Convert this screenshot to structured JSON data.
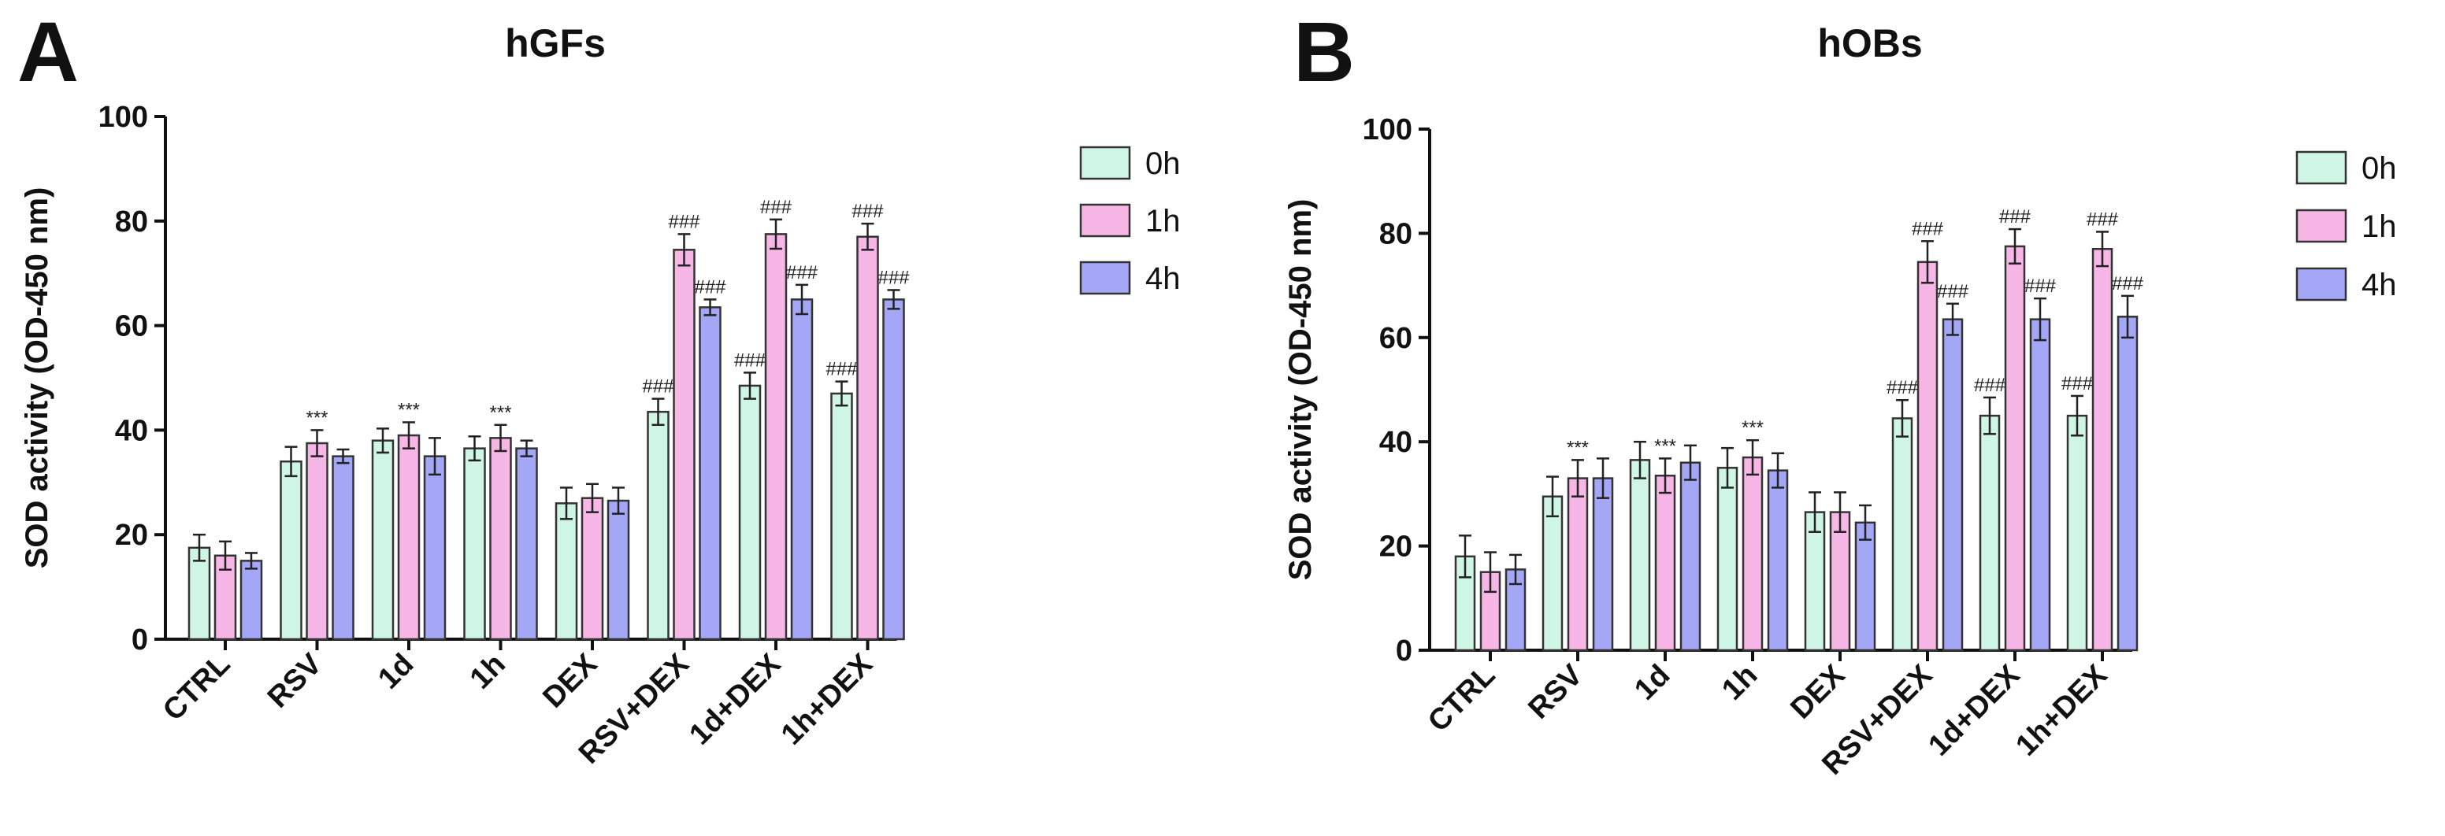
{
  "chart_data": [
    {
      "type": "bar",
      "panel": "A",
      "title": "hGFs",
      "ylabel": "SOD activity (OD-450 nm)",
      "xlabel": "",
      "ylim": [
        0,
        100
      ],
      "yticks": [
        0,
        20,
        40,
        60,
        80,
        100
      ],
      "categories": [
        "CTRL",
        "RSV",
        "1d",
        "1h",
        "DEX",
        "RSV+DEX",
        "1d+DEX",
        "1h+DEX"
      ],
      "series": [
        {
          "name": "0h",
          "color": "#cff5e4",
          "values": [
            17.5,
            34,
            38,
            36.5,
            26,
            43.5,
            48.5,
            47
          ],
          "errors": [
            2.5,
            2.8,
            2.3,
            2.3,
            3,
            2.5,
            2.5,
            2.3
          ],
          "annotations": [
            "",
            "",
            "",
            "",
            "",
            "###",
            "###",
            "###"
          ]
        },
        {
          "name": "1h",
          "color": "#f6b6e6",
          "values": [
            16,
            37.5,
            39,
            38.5,
            27,
            74.5,
            77.5,
            77
          ],
          "errors": [
            2.7,
            2.5,
            2.5,
            2.5,
            2.7,
            3,
            2.8,
            2.5
          ],
          "annotations": [
            "",
            "***",
            "***",
            "***",
            "",
            "###",
            "###",
            "###"
          ]
        },
        {
          "name": "4h",
          "color": "#a4a6f6",
          "values": [
            15,
            35,
            35,
            36.5,
            26.5,
            63.5,
            65,
            65
          ],
          "errors": [
            1.5,
            1.3,
            3.5,
            1.5,
            2.5,
            1.5,
            2.8,
            1.8
          ],
          "annotations": [
            "",
            "",
            "",
            "",
            "",
            "###",
            "###",
            "###"
          ]
        }
      ],
      "legend_position": "top-right"
    },
    {
      "type": "bar",
      "panel": "B",
      "title": "hOBs",
      "ylabel": "SOD activity (OD-450 nm)",
      "xlabel": "",
      "ylim": [
        0,
        100
      ],
      "yticks": [
        0,
        20,
        40,
        60,
        80,
        100
      ],
      "categories": [
        "CTRL",
        "RSV",
        "1d",
        "1h",
        "DEX",
        "RSV+DEX",
        "1d+DEX",
        "1h+DEX"
      ],
      "series": [
        {
          "name": "0h",
          "color": "#cff5e4",
          "values": [
            18,
            29.5,
            36.5,
            35,
            26.5,
            44.5,
            45,
            45
          ],
          "errors": [
            4,
            3.8,
            3.5,
            3.8,
            3.8,
            3.5,
            3.5,
            3.8
          ],
          "annotations": [
            "",
            "",
            "",
            "",
            "",
            "###",
            "###",
            "###"
          ]
        },
        {
          "name": "1h",
          "color": "#f6b6e6",
          "values": [
            15,
            33,
            33.5,
            37,
            26.5,
            74.5,
            77.5,
            77
          ],
          "errors": [
            3.8,
            3.5,
            3.3,
            3.3,
            3.8,
            4,
            3.3,
            3.3
          ],
          "annotations": [
            "",
            "***",
            "***",
            "***",
            "",
            "###",
            "###",
            "###"
          ]
        },
        {
          "name": "4h",
          "color": "#a4a6f6",
          "values": [
            15.5,
            33,
            36,
            34.5,
            24.5,
            63.5,
            63.5,
            64
          ],
          "errors": [
            2.8,
            3.8,
            3.3,
            3.3,
            3.3,
            3,
            4,
            4
          ],
          "annotations": [
            "",
            "",
            "",
            "",
            "",
            "###",
            "###",
            "###"
          ]
        }
      ],
      "legend_position": "top-right"
    }
  ]
}
